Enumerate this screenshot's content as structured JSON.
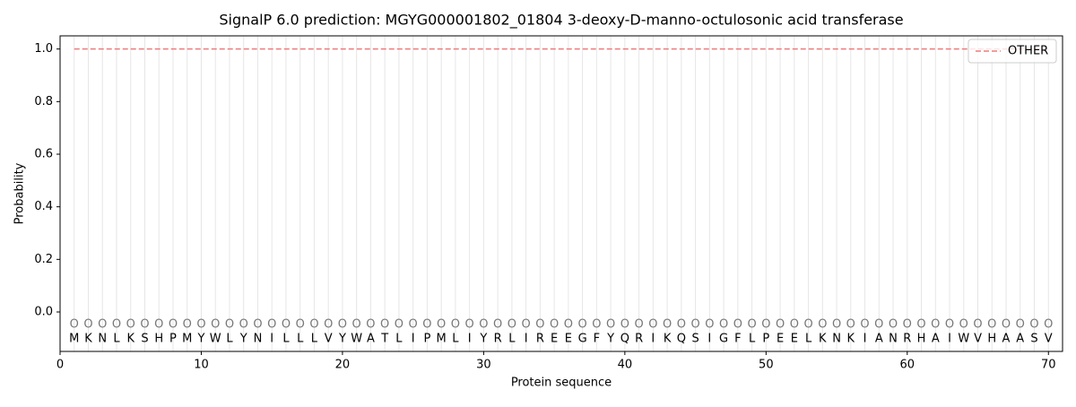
{
  "chart_data": {
    "type": "line",
    "title": "SignalP 6.0 prediction: MGYG000001802_01804 3-deoxy-D-manno-octulosonic acid transferase",
    "x_label": "Protein sequence",
    "y_label": "Probability",
    "x": [
      1,
      2,
      3,
      4,
      5,
      6,
      7,
      8,
      9,
      10,
      11,
      12,
      13,
      14,
      15,
      16,
      17,
      18,
      19,
      20,
      21,
      22,
      23,
      24,
      25,
      26,
      27,
      28,
      29,
      30,
      31,
      32,
      33,
      34,
      35,
      36,
      37,
      38,
      39,
      40,
      41,
      42,
      43,
      44,
      45,
      46,
      47,
      48,
      49,
      50,
      51,
      52,
      53,
      54,
      55,
      56,
      57,
      58,
      59,
      60,
      61,
      62,
      63,
      64,
      65,
      66,
      67,
      68,
      69,
      70
    ],
    "sequence": [
      "M",
      "K",
      "N",
      "L",
      "K",
      "S",
      "H",
      "P",
      "M",
      "Y",
      "W",
      "L",
      "Y",
      "N",
      "I",
      "L",
      "L",
      "L",
      "V",
      "Y",
      "W",
      "A",
      "T",
      "L",
      "I",
      "P",
      "M",
      "L",
      "I",
      "Y",
      "R",
      "L",
      "I",
      "R",
      "E",
      "E",
      "G",
      "F",
      "Y",
      "Q",
      "R",
      "I",
      "K",
      "Q",
      "S",
      "I",
      "G",
      "F",
      "L",
      "P",
      "E",
      "E",
      "L",
      "K",
      "N",
      "K",
      "I",
      "A",
      "N",
      "R",
      "H",
      "A",
      "I",
      "W",
      "V",
      "H",
      "A",
      "A",
      "S",
      "V"
    ],
    "predicted_labels": [
      "O",
      "O",
      "O",
      "O",
      "O",
      "O",
      "O",
      "O",
      "O",
      "O",
      "O",
      "O",
      "O",
      "O",
      "O",
      "O",
      "O",
      "O",
      "O",
      "O",
      "O",
      "O",
      "O",
      "O",
      "O",
      "O",
      "O",
      "O",
      "O",
      "O",
      "O",
      "O",
      "O",
      "O",
      "O",
      "O",
      "O",
      "O",
      "O",
      "O",
      "O",
      "O",
      "O",
      "O",
      "O",
      "O",
      "O",
      "O",
      "O",
      "O",
      "O",
      "O",
      "O",
      "O",
      "O",
      "O",
      "O",
      "O",
      "O",
      "O",
      "O",
      "O",
      "O",
      "O",
      "O",
      "O",
      "O",
      "O",
      "O",
      "O"
    ],
    "series": [
      {
        "name": "OTHER",
        "color": "#ef7b7b",
        "dashed": true,
        "values": [
          1,
          1,
          1,
          1,
          1,
          1,
          1,
          1,
          1,
          1,
          1,
          1,
          1,
          1,
          1,
          1,
          1,
          1,
          1,
          1,
          1,
          1,
          1,
          1,
          1,
          1,
          1,
          1,
          1,
          1,
          1,
          1,
          1,
          1,
          1,
          1,
          1,
          1,
          1,
          1,
          1,
          1,
          1,
          1,
          1,
          1,
          1,
          1,
          1,
          1,
          1,
          1,
          1,
          1,
          1,
          1,
          1,
          1,
          1,
          1,
          1,
          1,
          1,
          1,
          1,
          1,
          1,
          1,
          1,
          1
        ]
      }
    ],
    "xlim": [
      0,
      71
    ],
    "ylim": [
      -0.15,
      1.05
    ],
    "xticks": [
      0,
      10,
      20,
      30,
      40,
      50,
      60,
      70
    ],
    "yticks": [
      {
        "value": 0,
        "label": "0.0"
      },
      {
        "value": 0.2,
        "label": "0.2"
      },
      {
        "value": 0.4,
        "label": "0.4"
      },
      {
        "value": 0.6,
        "label": "0.6"
      },
      {
        "value": 0.8,
        "label": "0.8"
      },
      {
        "value": 1.0,
        "label": "1.0"
      }
    ],
    "legend": "upper right"
  }
}
